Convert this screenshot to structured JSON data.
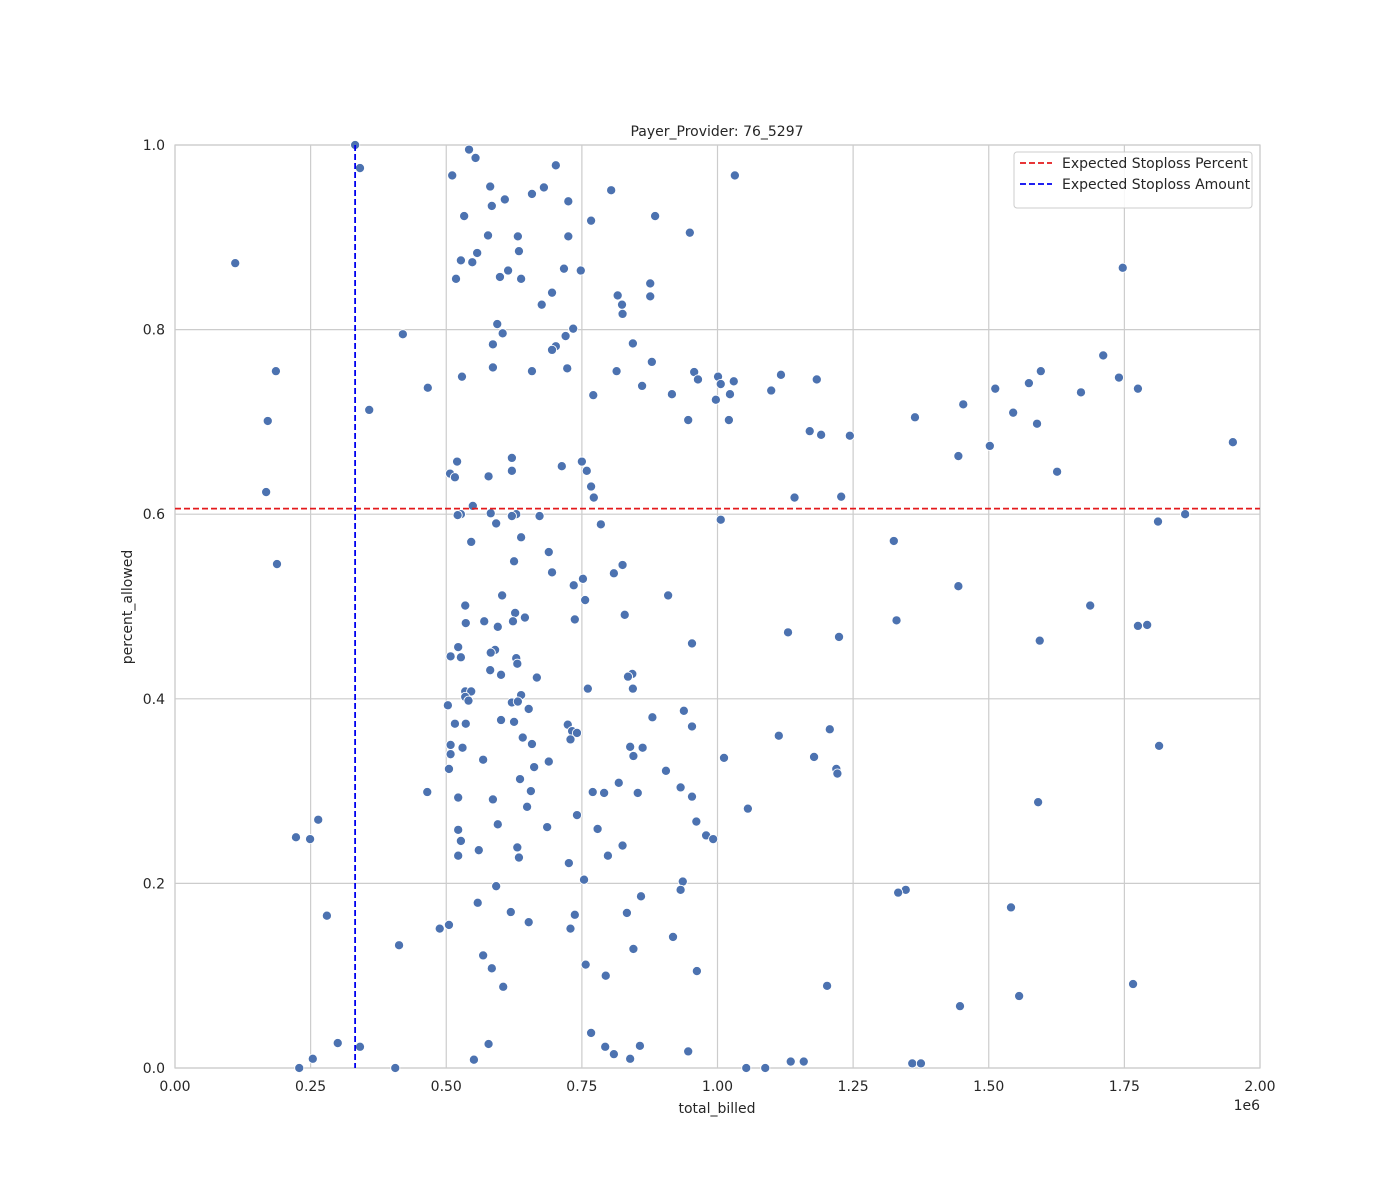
{
  "chart_data": {
    "type": "scatter",
    "title": "Payer_Provider: 76_5297",
    "x_label": "total_billed",
    "y_label": "percent_allowed",
    "x_offset_label": "1e6",
    "color": "#4c72b0",
    "grid": true,
    "legend_position": "upper right",
    "xlim": [
      0,
      2
    ],
    "ylim": [
      0,
      1
    ],
    "xticks": [
      {
        "value": 0,
        "label": "0.00"
      },
      {
        "value": 0.25,
        "label": "0.25"
      },
      {
        "value": 0.5,
        "label": "0.50"
      },
      {
        "value": 0.75,
        "label": "0.75"
      },
      {
        "value": 1,
        "label": "1.00"
      },
      {
        "value": 1.25,
        "label": "1.25"
      },
      {
        "value": 1.5,
        "label": "1.50"
      },
      {
        "value": 1.75,
        "label": "1.75"
      },
      {
        "value": 2,
        "label": "2.00"
      }
    ],
    "yticks": [
      {
        "value": 0,
        "label": "0.0"
      },
      {
        "value": 0.2,
        "label": "0.2"
      },
      {
        "value": 0.4,
        "label": "0.4"
      },
      {
        "value": 0.6,
        "label": "0.6"
      },
      {
        "value": 0.8,
        "label": "0.8"
      },
      {
        "value": 1,
        "label": "1.0"
      }
    ],
    "reference_lines": [
      {
        "name": "Expected Stoploss Percent",
        "color": "#e41a1c",
        "axis": "y",
        "value": 0.606
      },
      {
        "name": "Expected Stoploss Amount",
        "color": "#0000ee",
        "axis": "x",
        "value": 0.332
      }
    ],
    "x": [
      0.542,
      0.554,
      0.341,
      0.702,
      0.511,
      1.032,
      0.581,
      0.68,
      0.804,
      0.658,
      0.608,
      0.725,
      0.584,
      0.533,
      0.885,
      0.767,
      0.949,
      0.577,
      0.632,
      0.725,
      0.557,
      0.634,
      0.527,
      0.548,
      0.111,
      1.747,
      0.717,
      0.614,
      0.748,
      0.518,
      0.599,
      0.638,
      0.876,
      0.816,
      0.695,
      0.876,
      0.824,
      0.676,
      0.825,
      0.594,
      0.734,
      0.604,
      0.42,
      0.72,
      0.702,
      0.586,
      0.844,
      0.695,
      1.711,
      0.879,
      0.586,
      0.723,
      0.658,
      0.814,
      0.957,
      1.596,
      0.186,
      0.529,
      1.117,
      1.001,
      1.74,
      0.964,
      1.183,
      1.03,
      1.006,
      1.574,
      0.861,
      0.466,
      1.512,
      1.775,
      1.099,
      1.67,
      0.771,
      0.916,
      1.023,
      0.997,
      1.453,
      0.358,
      1.545,
      1.364,
      0.946,
      1.021,
      0.171,
      1.589,
      1.17,
      1.191,
      1.244,
      1.502,
      1.95,
      1.444,
      0.621,
      0.52,
      0.75,
      0.713,
      1.626,
      0.507,
      0.621,
      0.759,
      0.516,
      0.578,
      0.767,
      0.168,
      0.772,
      1.142,
      1.228,
      0.549,
      0.582,
      0.527,
      0.521,
      0.629,
      0.621,
      0.672,
      1.862,
      0.592,
      0.785,
      1.006,
      1.812,
      0.638,
      1.325,
      0.546,
      0.625,
      0.689,
      0.825,
      0.188,
      0.695,
      0.809,
      0.752,
      0.735,
      1.444,
      0.603,
      0.909,
      0.756,
      0.535,
      1.687,
      0.627,
      0.829,
      0.645,
      0.737,
      1.33,
      0.57,
      0.536,
      0.623,
      1.792,
      1.775,
      0.595,
      1.13,
      1.224,
      1.594,
      0.953,
      0.522,
      0.59,
      0.582,
      0.508,
      0.527,
      0.629,
      0.631,
      0.581,
      0.601,
      0.843,
      0.835,
      0.667,
      0.761,
      0.844,
      0.535,
      0.546,
      0.535,
      0.638,
      0.541,
      0.621,
      0.632,
      0.503,
      0.652,
      0.938,
      0.88,
      0.601,
      0.516,
      0.536,
      0.625,
      0.724,
      0.953,
      1.207,
      0.732,
      0.741,
      1.113,
      0.729,
      0.641,
      0.658,
      0.508,
      1.814,
      0.839,
      0.862,
      0.53,
      0.508,
      0.845,
      1.012,
      1.178,
      0.568,
      0.689,
      0.662,
      0.505,
      1.219,
      1.221,
      0.905,
      0.636,
      0.818,
      0.932,
      0.656,
      0.465,
      0.77,
      0.791,
      0.853,
      0.953,
      0.522,
      0.586,
      1.591,
      0.649,
      1.056,
      0.741,
      0.264,
      0.595,
      0.961,
      0.686,
      0.779,
      0.522,
      0.223,
      0.249,
      0.979,
      0.992,
      0.527,
      0.825,
      0.631,
      0.56,
      0.634,
      0.522,
      0.798,
      0.726,
      0.754,
      0.936,
      0.592,
      0.932,
      1.347,
      1.333,
      0.859,
      0.558,
      1.541,
      0.619,
      0.833,
      0.737,
      0.28,
      0.652,
      0.505,
      0.729,
      0.488,
      0.918,
      0.413,
      0.845,
      0.568,
      0.584,
      0.757,
      0.962,
      0.794,
      1.766,
      0.605,
      1.202,
      1.556,
      1.447,
      0.767,
      0.3,
      0.578,
      0.341,
      0.857,
      0.793,
      0.946,
      0.809,
      0.839,
      0.551,
      0.254,
      1.135,
      1.159,
      1.359,
      1.375,
      0.229,
      0.406,
      1.053,
      1.088,
      0.332
    ],
    "values": [
      0.995,
      0.986,
      0.975,
      0.978,
      0.967,
      0.967,
      0.955,
      0.954,
      0.951,
      0.947,
      0.941,
      0.939,
      0.934,
      0.923,
      0.923,
      0.918,
      0.905,
      0.902,
      0.901,
      0.901,
      0.883,
      0.885,
      0.875,
      0.873,
      0.872,
      0.867,
      0.866,
      0.864,
      0.864,
      0.855,
      0.857,
      0.855,
      0.85,
      0.837,
      0.84,
      0.836,
      0.827,
      0.827,
      0.817,
      0.806,
      0.801,
      0.796,
      0.795,
      0.793,
      0.782,
      0.784,
      0.785,
      0.778,
      0.772,
      0.765,
      0.759,
      0.758,
      0.755,
      0.755,
      0.754,
      0.755,
      0.755,
      0.749,
      0.751,
      0.749,
      0.748,
      0.746,
      0.746,
      0.744,
      0.741,
      0.742,
      0.739,
      0.737,
      0.736,
      0.736,
      0.734,
      0.732,
      0.729,
      0.73,
      0.73,
      0.724,
      0.719,
      0.713,
      0.71,
      0.705,
      0.702,
      0.702,
      0.701,
      0.698,
      0.69,
      0.686,
      0.685,
      0.674,
      0.678,
      0.663,
      0.661,
      0.657,
      0.657,
      0.652,
      0.646,
      0.644,
      0.647,
      0.647,
      0.64,
      0.641,
      0.63,
      0.624,
      0.618,
      0.618,
      0.619,
      0.609,
      0.601,
      0.6,
      0.599,
      0.6,
      0.598,
      0.598,
      0.6,
      0.59,
      0.589,
      0.594,
      0.592,
      0.575,
      0.571,
      0.57,
      0.549,
      0.559,
      0.545,
      0.546,
      0.537,
      0.536,
      0.53,
      0.523,
      0.522,
      0.512,
      0.512,
      0.507,
      0.501,
      0.501,
      0.493,
      0.491,
      0.488,
      0.486,
      0.485,
      0.484,
      0.482,
      0.484,
      0.48,
      0.479,
      0.478,
      0.472,
      0.467,
      0.463,
      0.46,
      0.456,
      0.453,
      0.45,
      0.446,
      0.445,
      0.444,
      0.438,
      0.431,
      0.426,
      0.427,
      0.424,
      0.423,
      0.411,
      0.411,
      0.408,
      0.408,
      0.402,
      0.404,
      0.398,
      0.396,
      0.397,
      0.393,
      0.389,
      0.387,
      0.38,
      0.377,
      0.373,
      0.373,
      0.375,
      0.372,
      0.37,
      0.367,
      0.365,
      0.363,
      0.36,
      0.356,
      0.358,
      0.351,
      0.35,
      0.349,
      0.348,
      0.347,
      0.347,
      0.34,
      0.338,
      0.336,
      0.337,
      0.334,
      0.332,
      0.326,
      0.324,
      0.324,
      0.319,
      0.322,
      0.313,
      0.309,
      0.304,
      0.3,
      0.299,
      0.299,
      0.298,
      0.298,
      0.294,
      0.293,
      0.291,
      0.288,
      0.283,
      0.281,
      0.274,
      0.269,
      0.264,
      0.267,
      0.261,
      0.259,
      0.258,
      0.25,
      0.248,
      0.252,
      0.248,
      0.246,
      0.241,
      0.239,
      0.236,
      0.228,
      0.23,
      0.23,
      0.222,
      0.204,
      0.202,
      0.197,
      0.193,
      0.193,
      0.19,
      0.186,
      0.179,
      0.174,
      0.169,
      0.168,
      0.166,
      0.165,
      0.158,
      0.155,
      0.151,
      0.151,
      0.142,
      0.133,
      0.129,
      0.122,
      0.108,
      0.112,
      0.105,
      0.1,
      0.091,
      0.088,
      0.089,
      0.078,
      0.067,
      0.038,
      0.027,
      0.026,
      0.023,
      0.024,
      0.023,
      0.018,
      0.015,
      0.01,
      0.009,
      0.01,
      0.007,
      0.007,
      0.005,
      0.005,
      0,
      0,
      0,
      0,
      1.0
    ]
  }
}
